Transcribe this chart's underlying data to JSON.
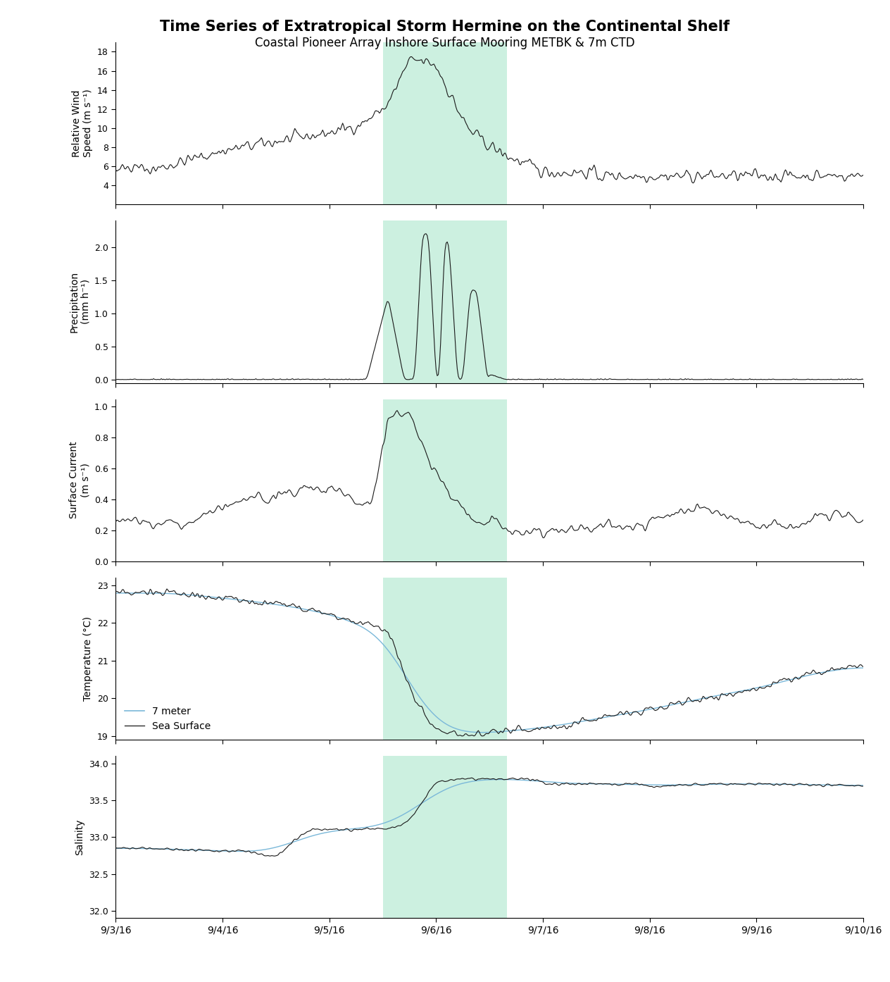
{
  "title": "Time Series of Extratropical Storm Hermine on the Continental Shelf",
  "subtitle": "Coastal Pioneer Array Inshore Surface Mooring METBK & 7m CTD",
  "title_fontsize": 15,
  "subtitle_fontsize": 12,
  "highlight_color": "#ccf0e0",
  "line_color": "#1a1a1a",
  "line_color_blue": "#7ab8d9",
  "panels": [
    {
      "ylabel": "Relative Wind\nSpeed (m s⁻¹)",
      "ylim": [
        2,
        19
      ],
      "yticks": [
        4,
        6,
        8,
        10,
        12,
        14,
        16,
        18
      ]
    },
    {
      "ylabel": "Precipitation\n(mm h⁻¹)",
      "ylim": [
        -0.05,
        2.4
      ],
      "yticks": [
        0.0,
        0.5,
        1.0,
        1.5,
        2.0
      ]
    },
    {
      "ylabel": "Surface Current\n(m s⁻¹)",
      "ylim": [
        0.0,
        1.05
      ],
      "yticks": [
        0.0,
        0.2,
        0.4,
        0.6,
        0.8,
        1.0
      ]
    },
    {
      "ylabel": "Temperature (°C)",
      "ylim": [
        18.9,
        23.2
      ],
      "yticks": [
        19,
        20,
        21,
        22,
        23
      ]
    },
    {
      "ylabel": "Salinity",
      "ylim": [
        31.9,
        34.1
      ],
      "yticks": [
        32.0,
        32.5,
        33.0,
        33.5,
        34.0
      ]
    }
  ]
}
